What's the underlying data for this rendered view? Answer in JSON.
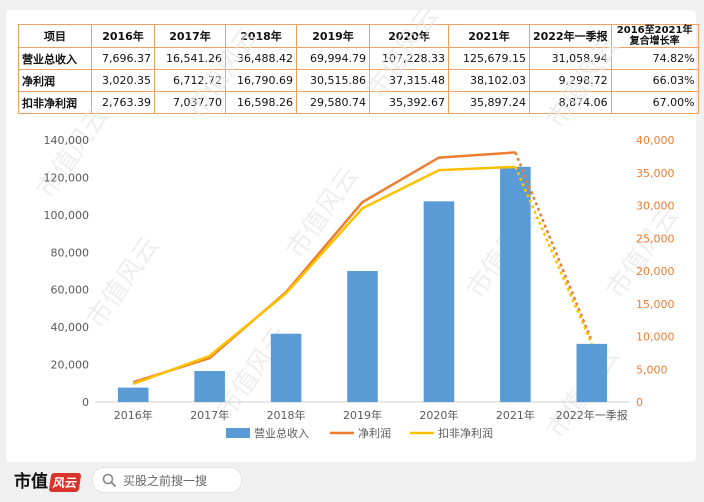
{
  "table": {
    "headers": [
      "项目",
      "2016年",
      "2017年",
      "2018年",
      "2019年",
      "2020年",
      "2021年",
      "2022年一季报",
      "2016至2021年复合增长率"
    ],
    "rows": [
      {
        "label": "营业总收入",
        "values": [
          "7,696.37",
          "16,541.26",
          "36,488.42",
          "69,994.79",
          "107,228.33",
          "125,679.15",
          "31,058.94",
          "74.82%"
        ]
      },
      {
        "label": "净利润",
        "values": [
          "3,020.35",
          "6,712.72",
          "16,790.69",
          "30,515.86",
          "37,315.48",
          "38,102.03",
          "9,298.72",
          "66.03%"
        ]
      },
      {
        "label": "扣非净利润",
        "values": [
          "2,763.39",
          "7,037.70",
          "16,598.26",
          "29,580.74",
          "35,392.67",
          "35,897.24",
          "8,874.06",
          "67.00%"
        ]
      }
    ]
  },
  "chart_data": {
    "type": "bar",
    "categories": [
      "2016年",
      "2017年",
      "2018年",
      "2019年",
      "2020年",
      "2021年",
      "2022年一季报"
    ],
    "series": [
      {
        "name": "营业总收入",
        "type": "bar",
        "axis": "left",
        "color": "#5b9bd5",
        "values": [
          7696.37,
          16541.26,
          36488.42,
          69994.79,
          107228.33,
          125679.15,
          31058.94
        ]
      },
      {
        "name": "净利润",
        "type": "line",
        "axis": "right",
        "color": "#ed7d31",
        "values": [
          3020.35,
          6712.72,
          16790.69,
          30515.86,
          37315.48,
          38102.03,
          9298.72
        ]
      },
      {
        "name": "扣非净利润",
        "type": "line",
        "axis": "right",
        "color": "#ffc000",
        "values": [
          2763.39,
          7037.7,
          16598.26,
          29580.74,
          35392.67,
          35897.24,
          8874.06
        ]
      }
    ],
    "y_left": {
      "min": 0,
      "max": 140000,
      "ticks": [
        "0",
        "20,000",
        "40,000",
        "60,000",
        "80,000",
        "100,000",
        "120,000",
        "140,000"
      ]
    },
    "y_right": {
      "min": 0,
      "max": 40000,
      "ticks": [
        "0",
        "5,000",
        "10,000",
        "15,000",
        "20,000",
        "25,000",
        "30,000",
        "35,000",
        "40,000"
      ]
    },
    "dashed_last_segment": true,
    "grid": false,
    "legend_position": "bottom"
  },
  "watermark_text": "市值风云",
  "footer": {
    "brand": "市值",
    "brand_stamp": "风云",
    "search_placeholder": "买股之前搜一搜"
  }
}
